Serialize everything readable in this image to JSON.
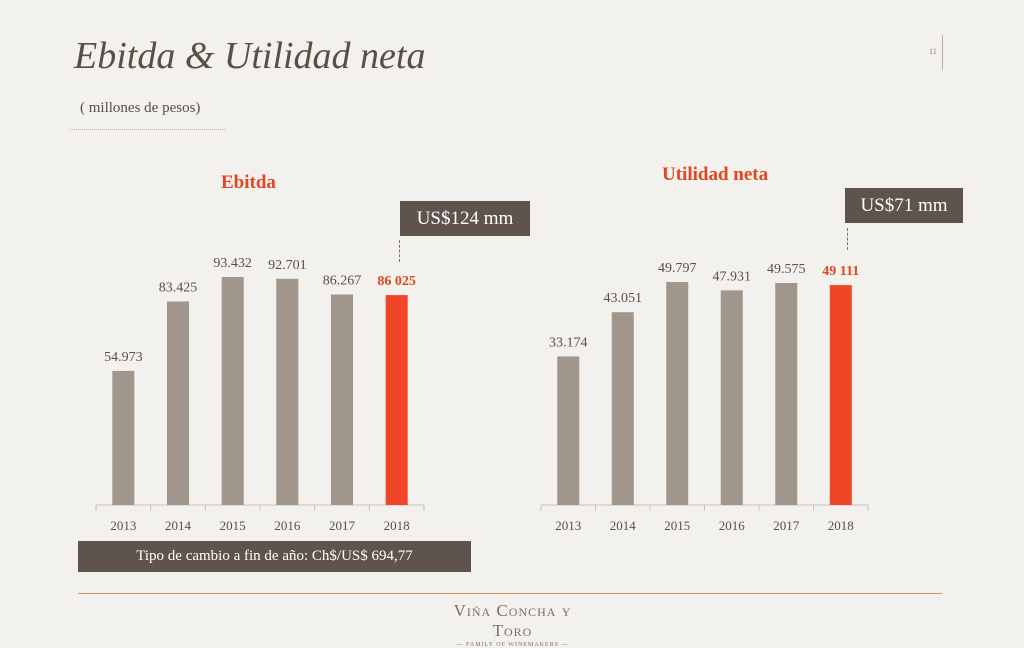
{
  "header": {
    "title": "Ebitda & Utilidad neta",
    "subtitle": "( millones de pesos)",
    "page_number": "11"
  },
  "callouts": {
    "ebitda": "US$124 mm",
    "net_income": "US$71 mm"
  },
  "footer": {
    "exchange_rate": "Tipo de cambio a fin de año:  Ch$/US$ 694,77",
    "logo": "Viña Concha y Toro",
    "logo_tagline": "— FAMILY OF WINEMAKERS —"
  },
  "colors": {
    "bar": "#a0968c",
    "highlight": "#f04628",
    "title_accent": "#e2461f",
    "dark_box": "#5e544d"
  },
  "chart_data": [
    {
      "type": "bar",
      "title": "Ebitda",
      "categories": [
        "2013",
        "2014",
        "2015",
        "2016",
        "2017",
        "2018"
      ],
      "values": [
        54973,
        83425,
        93432,
        92701,
        86267,
        86025
      ],
      "labels": [
        "54.973",
        "83.425",
        "93.432",
        "92.701",
        "86.267",
        "86 025"
      ],
      "highlight_index": 5,
      "ylim": [
        0,
        100000
      ]
    },
    {
      "type": "bar",
      "title": "Utilidad neta",
      "categories": [
        "2013",
        "2014",
        "2015",
        "2016",
        "2017",
        "2018"
      ],
      "values": [
        33174,
        43051,
        49797,
        47931,
        49575,
        49111
      ],
      "labels": [
        "33.174",
        "43.051",
        "49.797",
        "47.931",
        "49.575",
        "49 111"
      ],
      "highlight_index": 5,
      "ylim": [
        0,
        50000
      ]
    }
  ]
}
